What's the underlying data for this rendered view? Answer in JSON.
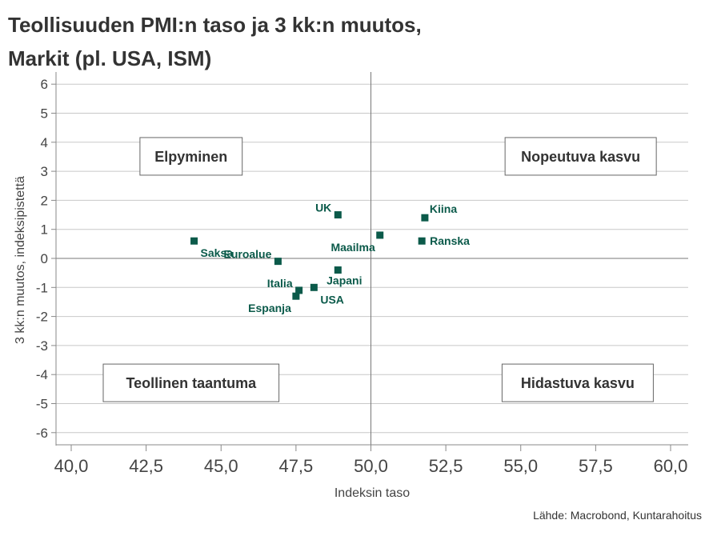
{
  "title_line1": "Teollisuuden PMI:n taso ja 3 kk:n muutos,",
  "title_line2": "Markit (pl. USA, ISM)",
  "source": "Lähde: Macrobond, Kuntarahoitus",
  "colors": {
    "marker": "#0b5a4a",
    "label": "#0b5a4a",
    "grid": "#c8c8c8",
    "axis": "#888888",
    "text": "#444444"
  },
  "chart_data": {
    "type": "scatter",
    "xlabel": "Indeksin taso",
    "ylabel": "3 kk:n muutos, indeksipistettä",
    "xlim": [
      40,
      60
    ],
    "ylim": [
      -6,
      6
    ],
    "x_ticks": [
      40,
      42.5,
      45,
      47.5,
      50,
      52.5,
      55,
      57.5,
      60
    ],
    "x_tick_labels": [
      "40,0",
      "42,5",
      "45,0",
      "47,5",
      "50,0",
      "52,5",
      "55,0",
      "57,5",
      "60,0"
    ],
    "y_ticks": [
      6,
      5,
      4,
      3,
      2,
      1,
      0,
      -1,
      -2,
      -3,
      -4,
      -5,
      -6
    ],
    "y_tick_labels": [
      "6",
      "5",
      "4",
      "3",
      "2",
      "1",
      "0",
      "-1",
      "-2",
      "-3",
      "-4",
      "-5",
      "-6"
    ],
    "grid": "horizontal",
    "reference_lines": {
      "x": 50,
      "y": 0
    },
    "points": [
      {
        "label": "Saksa",
        "x": 44.1,
        "y": 0.6,
        "label_pos": "below-right"
      },
      {
        "label": "UK",
        "x": 48.9,
        "y": 1.5,
        "label_pos": "above-left"
      },
      {
        "label": "Euroalue",
        "x": 46.9,
        "y": -0.1,
        "label_pos": "above-left"
      },
      {
        "label": "Japani",
        "x": 48.9,
        "y": -0.4,
        "label_pos": "below"
      },
      {
        "label": "Italia",
        "x": 47.6,
        "y": -1.1,
        "label_pos": "above-left"
      },
      {
        "label": "USA",
        "x": 48.1,
        "y": -1.0,
        "label_pos": "below-right"
      },
      {
        "label": "Espanja",
        "x": 47.5,
        "y": -1.3,
        "label_pos": "below-left"
      },
      {
        "label": "Kiina",
        "x": 51.8,
        "y": 1.4,
        "label_pos": "above-right"
      },
      {
        "label": "Maailma",
        "x": 50.3,
        "y": 0.8,
        "label_pos": "below-left"
      },
      {
        "label": "Ranska",
        "x": 51.7,
        "y": 0.6,
        "label_pos": "right"
      }
    ],
    "annotations": [
      {
        "text": "Elpyminen",
        "x": 44.0,
        "y": 3.5
      },
      {
        "text": "Nopeutuva kasvu",
        "x": 57.0,
        "y": 3.5
      },
      {
        "text": "Teollinen taantuma",
        "x": 44.0,
        "y": -4.3
      },
      {
        "text": "Hidastuva kasvu",
        "x": 56.9,
        "y": -4.3
      }
    ]
  }
}
